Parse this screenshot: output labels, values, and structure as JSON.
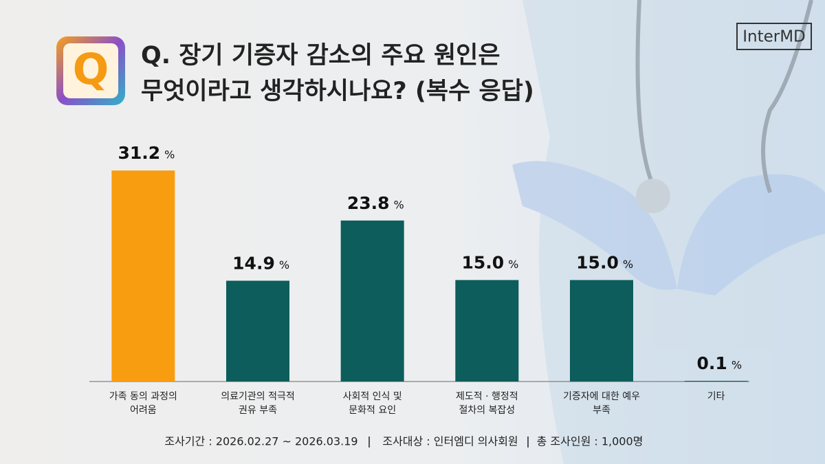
{
  "brand": "InterMD",
  "icon": "Q",
  "footer": [
    "조사기간 : 2026.02.27 ~ 2026.03.19",
    "조사대상 : 인터엠디 의사회원",
    "총 조사인원 : 1,000명"
  ],
  "chart_data": {
    "type": "bar",
    "title": [
      "Q. 장기 기증자 감소의 주요 원인은",
      "무엇이라고 생각하시나요? (복수 응답)"
    ],
    "categories": [
      [
        "가족 동의 과정의",
        "어려움"
      ],
      [
        "의료기관의 적극적",
        "권유 부족"
      ],
      [
        "사회적 인식 및",
        "문화적 요인"
      ],
      [
        "제도적 · 행정적",
        "절차의 복잡성"
      ],
      [
        "기증자에 대한 예우",
        "부족"
      ],
      [
        "기타"
      ]
    ],
    "values": [
      31.2,
      14.9,
      23.8,
      15.0,
      15.0,
      0.1
    ],
    "value_labels": [
      "31.2",
      "14.9",
      "23.8",
      "15.0",
      "15.0",
      "0.1"
    ],
    "value_unit": "%",
    "colors": [
      "#f99d10",
      "#0c5d5b",
      "#0c5d5b",
      "#0c5d5b",
      "#0c5d5b",
      "#0c5d5b"
    ]
  }
}
